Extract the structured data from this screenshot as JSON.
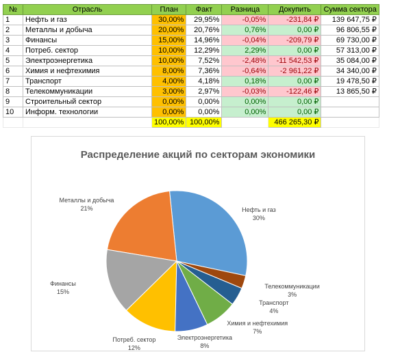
{
  "table": {
    "headers": [
      "№",
      "Отрасль",
      "План",
      "Факт",
      "Разница",
      "Докупить",
      "Сумма сектора"
    ],
    "rows": [
      {
        "num": "1",
        "name": "Нефть и газ",
        "plan": "30,00%",
        "fact": "29,95%",
        "diff": "-0,05%",
        "buy": "-231,84 ₽",
        "sum": "139 647,75 ₽",
        "sign": "neg"
      },
      {
        "num": "2",
        "name": "Металлы и добыча",
        "plan": "20,00%",
        "fact": "20,76%",
        "diff": "0,76%",
        "buy": "0,00 ₽",
        "sum": "96 806,55 ₽",
        "sign": "pos"
      },
      {
        "num": "3",
        "name": "Финансы",
        "plan": "15,00%",
        "fact": "14,96%",
        "diff": "-0,04%",
        "buy": "-209,79 ₽",
        "sum": "69 730,00 ₽",
        "sign": "neg"
      },
      {
        "num": "4",
        "name": "Потреб. сектор",
        "plan": "10,00%",
        "fact": "12,29%",
        "diff": "2,29%",
        "buy": "0,00 ₽",
        "sum": "57 313,00 ₽",
        "sign": "pos"
      },
      {
        "num": "5",
        "name": "Электроэнергетика",
        "plan": "10,00%",
        "fact": "7,52%",
        "diff": "-2,48%",
        "buy": "-11 542,53 ₽",
        "sum": "35 084,00 ₽",
        "sign": "neg"
      },
      {
        "num": "6",
        "name": "Химия и нефтехимия",
        "plan": "8,00%",
        "fact": "7,36%",
        "diff": "-0,64%",
        "buy": "-2 961,22 ₽",
        "sum": "34 340,00 ₽",
        "sign": "neg"
      },
      {
        "num": "7",
        "name": "Транспорт",
        "plan": "4,00%",
        "fact": "4,18%",
        "diff": "0,18%",
        "buy": "0,00 ₽",
        "sum": "19 478,50 ₽",
        "sign": "pos"
      },
      {
        "num": "8",
        "name": "Телекоммуникации",
        "plan": "3,00%",
        "fact": "2,97%",
        "diff": "-0,03%",
        "buy": "-122,46 ₽",
        "sum": "13 865,50 ₽",
        "sign": "neg"
      },
      {
        "num": "9",
        "name": "Строительный сектор",
        "plan": "0,00%",
        "fact": "0,00%",
        "diff": "0,00%",
        "buy": "0,00 ₽",
        "sum": "",
        "sign": "pos"
      },
      {
        "num": "10",
        "name": "Информ. технологии",
        "plan": "0,00%",
        "fact": "0,00%",
        "diff": "0,00%",
        "buy": "0,00 ₽",
        "sum": "",
        "sign": "pos"
      }
    ],
    "totals": {
      "plan": "100,00%",
      "fact": "100,00%",
      "buy": "466 265,30 ₽"
    }
  },
  "colors": {
    "header_green": "#92d050",
    "plan_orange": "#ffc000",
    "negative_fill": "#ffc7ce",
    "negative_text": "#9c0006",
    "positive_fill": "#c6efce",
    "positive_text": "#006100",
    "total_yellow": "#ffff00"
  },
  "chart_data": {
    "type": "pie",
    "title": "Распределение акций по секторам экономики",
    "slices": [
      {
        "name": "Нефть и газ",
        "label": "30%",
        "value": 29.95,
        "color": "#5b9bd5"
      },
      {
        "name": "Металлы и добыча",
        "label": "21%",
        "value": 20.76,
        "color": "#ed7d31"
      },
      {
        "name": "Финансы",
        "label": "15%",
        "value": 14.96,
        "color": "#a5a5a5"
      },
      {
        "name": "Потреб. сектор",
        "label": "12%",
        "value": 12.29,
        "color": "#ffc000"
      },
      {
        "name": "Электроэнергетика",
        "label": "8%",
        "value": 7.52,
        "color": "#4472c4"
      },
      {
        "name": "Химия и нефтехимия",
        "label": "7%",
        "value": 7.36,
        "color": "#70ad47"
      },
      {
        "name": "Транспорт",
        "label": "4%",
        "value": 4.18,
        "color": "#255e91"
      },
      {
        "name": "Телекоммуникации",
        "label": "3%",
        "value": 2.97,
        "color": "#9e480e"
      }
    ]
  }
}
